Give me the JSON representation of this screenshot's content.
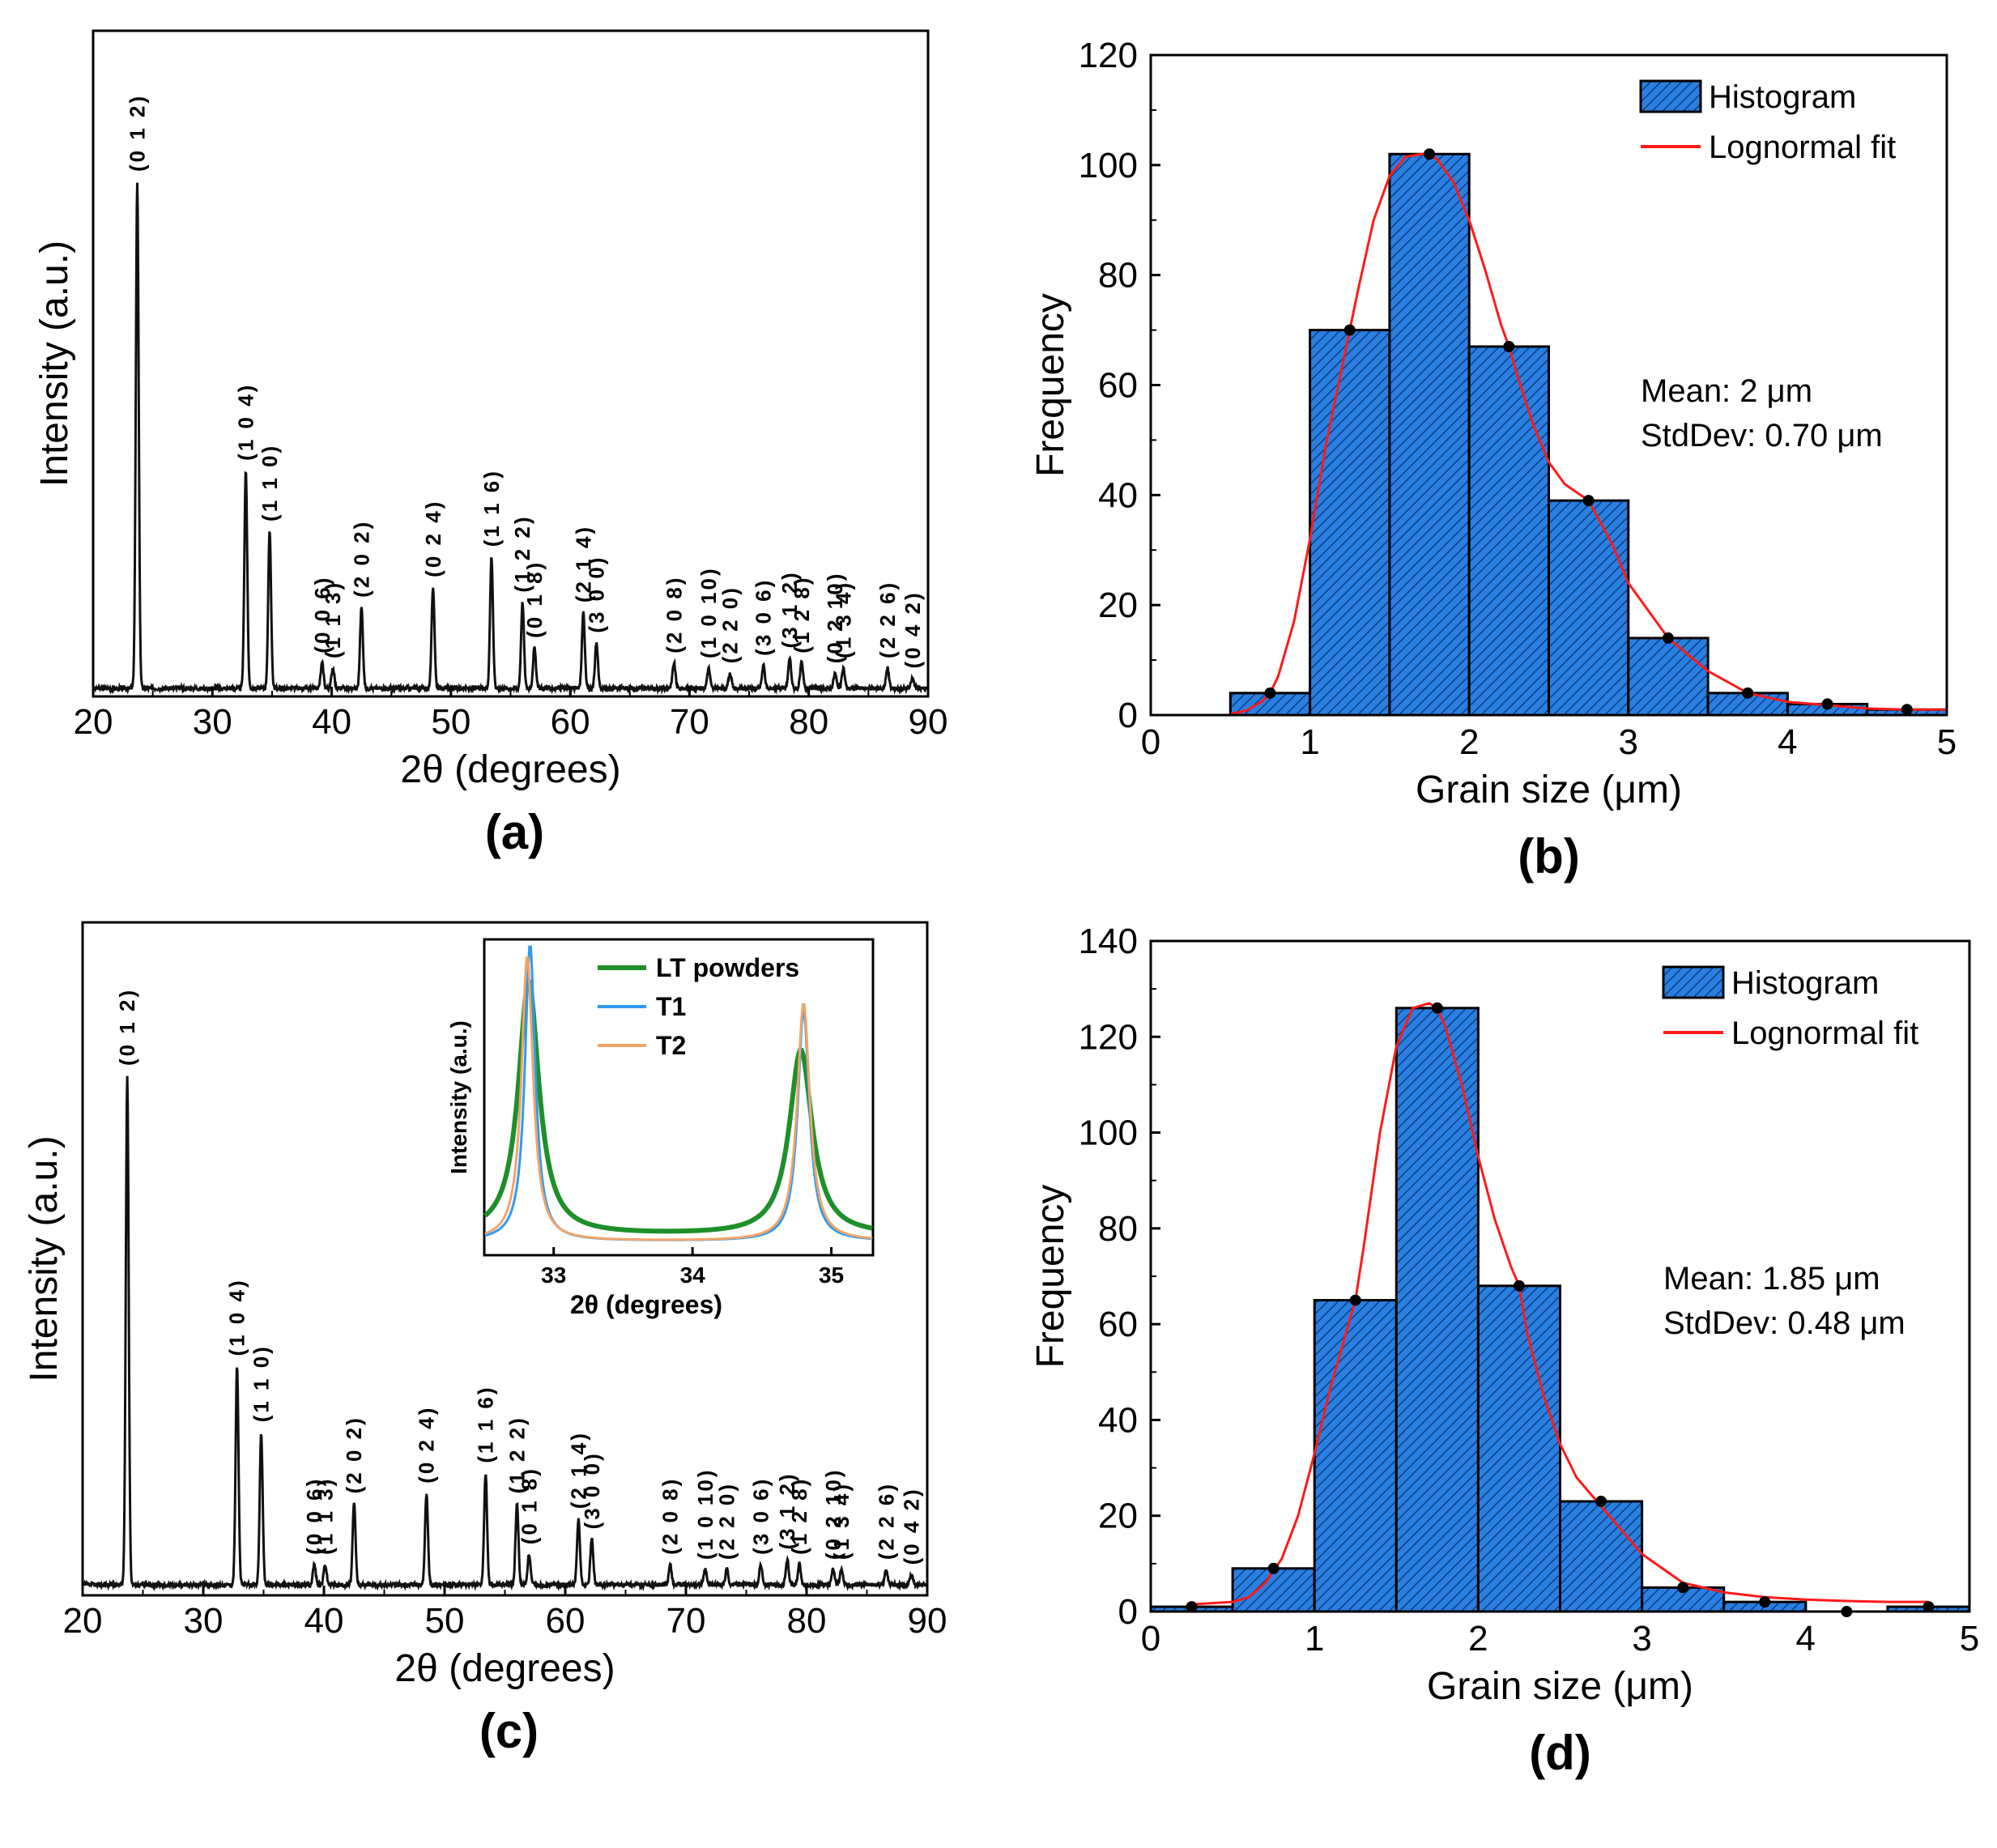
{
  "colors": {
    "axis": "#000000",
    "xrd_line": "#111111",
    "bar_fill": "#2a7fe0",
    "bar_edge": "#000000",
    "fit_line": "#ff1a1a",
    "marker": "#000000",
    "inset_lt": "#1f8f2a",
    "inset_t1": "#2f9bf0",
    "inset_t2": "#f0a46a"
  },
  "chart_data": [
    {
      "id": "a",
      "type": "line",
      "panel_label": "(a)",
      "xlabel": "2θ (degrees)",
      "ylabel": "Intensity (a.u.)",
      "xlim": [
        20,
        90
      ],
      "ylim": [
        0,
        100
      ],
      "xticks": [
        "20",
        "30",
        "40",
        "50",
        "60",
        "70",
        "80",
        "90"
      ],
      "baseline": 0,
      "peaks": [
        {
          "x": 23.7,
          "y": 100,
          "label": "(0 1 2)"
        },
        {
          "x": 32.8,
          "y": 43,
          "label": "(1 0 4)"
        },
        {
          "x": 34.8,
          "y": 31,
          "label": "(1 1 0)"
        },
        {
          "x": 39.2,
          "y": 5,
          "label": "(0 0 6)"
        },
        {
          "x": 40.1,
          "y": 4,
          "label": "(1 1 3)"
        },
        {
          "x": 42.5,
          "y": 16,
          "label": "(2 0 2)"
        },
        {
          "x": 48.5,
          "y": 20,
          "label": "(0 2 4)"
        },
        {
          "x": 53.4,
          "y": 26,
          "label": "(1 1 6)"
        },
        {
          "x": 56.0,
          "y": 17,
          "label": "(1 2 2)"
        },
        {
          "x": 57.0,
          "y": 8,
          "label": "(0 1 8)"
        },
        {
          "x": 61.1,
          "y": 15,
          "label": "(2 1 4)"
        },
        {
          "x": 62.2,
          "y": 9,
          "label": "(3 0 0)"
        },
        {
          "x": 68.7,
          "y": 5,
          "label": "(2 0 8)"
        },
        {
          "x": 71.6,
          "y": 4,
          "label": "(1 0 10)"
        },
        {
          "x": 73.4,
          "y": 3,
          "label": "(2 2 0)"
        },
        {
          "x": 76.2,
          "y": 4.5,
          "label": "(3 0 6)"
        },
        {
          "x": 78.4,
          "y": 6,
          "label": "(3 1 2)"
        },
        {
          "x": 79.4,
          "y": 5,
          "label": "(1 2 8)"
        },
        {
          "x": 82.2,
          "y": 3,
          "label": "(0 2 10)"
        },
        {
          "x": 82.9,
          "y": 4,
          "label": "(1 3 4)"
        },
        {
          "x": 86.6,
          "y": 4,
          "label": "(2 2 6)"
        },
        {
          "x": 88.7,
          "y": 2,
          "label": "(0 4 2)"
        }
      ]
    },
    {
      "id": "b",
      "type": "bar",
      "panel_label": "(b)",
      "xlabel": "Grain size (μm)",
      "ylabel": "Frequency",
      "xlim": [
        0,
        5
      ],
      "ylim": [
        0,
        120
      ],
      "xticks": [
        "0",
        "1",
        "2",
        "3",
        "4",
        "5"
      ],
      "yticks": [
        "0",
        "20",
        "40",
        "60",
        "80",
        "100",
        "120"
      ],
      "bin_edges": [
        0.5,
        1.0,
        1.5,
        2.0,
        2.5,
        3.0,
        3.5,
        4.0,
        4.5,
        5.0
      ],
      "values": [
        4,
        70,
        102,
        67,
        39,
        14,
        4,
        2,
        1
      ],
      "fit_points": {
        "x": [
          0.75,
          1.25,
          1.75,
          2.25,
          2.75,
          3.25,
          3.75,
          4.25,
          4.75
        ],
        "y": [
          4,
          70,
          102,
          67,
          39,
          14,
          4,
          2,
          1
        ]
      },
      "fit_curve": {
        "x": [
          0.5,
          0.6,
          0.7,
          0.75,
          0.8,
          0.9,
          1.0,
          1.1,
          1.2,
          1.25,
          1.3,
          1.4,
          1.5,
          1.6,
          1.7,
          1.75,
          1.8,
          1.9,
          2.0,
          2.1,
          2.2,
          2.25,
          2.3,
          2.4,
          2.5,
          2.6,
          2.75,
          2.9,
          3.0,
          3.25,
          3.5,
          3.75,
          4.0,
          4.25,
          4.5,
          4.75,
          5.0
        ],
        "y": [
          0.2,
          0.8,
          2.5,
          4,
          7,
          17,
          32,
          49,
          63,
          70,
          77,
          90,
          98,
          101.5,
          102,
          102,
          101,
          97,
          90,
          81,
          71,
          67,
          62,
          53,
          46,
          42,
          39,
          31,
          24,
          14,
          8,
          4,
          2.4,
          1.8,
          1.2,
          1,
          1
        ]
      },
      "legend": {
        "placement": "top-right",
        "items": [
          "Histogram",
          "Lognormal fit"
        ]
      },
      "annotations": [
        "Mean: 2 μm",
        "StdDev: 0.70 μm"
      ]
    },
    {
      "id": "c",
      "type": "line",
      "panel_label": "(c)",
      "xlabel": "2θ (degrees)",
      "ylabel": "Intensity (a.u.)",
      "xlim": [
        20,
        90
      ],
      "ylim": [
        0,
        100
      ],
      "xticks": [
        "20",
        "30",
        "40",
        "50",
        "60",
        "70",
        "80",
        "90"
      ],
      "baseline": 0,
      "peaks": [
        {
          "x": 23.7,
          "y": 100,
          "label": "(0 1 2)"
        },
        {
          "x": 32.8,
          "y": 43,
          "label": "(1 0 4)"
        },
        {
          "x": 34.8,
          "y": 30,
          "label": "(1 1 0)"
        },
        {
          "x": 39.2,
          "y": 4,
          "label": "(0 0 6)"
        },
        {
          "x": 40.1,
          "y": 4,
          "label": "(1 1 3)"
        },
        {
          "x": 42.5,
          "y": 16,
          "label": "(2 0 2)"
        },
        {
          "x": 48.5,
          "y": 18,
          "label": "(0 2 4)"
        },
        {
          "x": 53.4,
          "y": 22,
          "label": "(1 1 6)"
        },
        {
          "x": 56.0,
          "y": 16,
          "label": "(1 2 2)"
        },
        {
          "x": 57.0,
          "y": 6,
          "label": "(0 1 8)"
        },
        {
          "x": 61.1,
          "y": 13,
          "label": "(2 1 4)"
        },
        {
          "x": 62.2,
          "y": 9,
          "label": "(3 0 0)"
        },
        {
          "x": 68.7,
          "y": 4,
          "label": "(2 0 8)"
        },
        {
          "x": 71.6,
          "y": 3,
          "label": "(1 0 10)"
        },
        {
          "x": 73.4,
          "y": 3,
          "label": "(2 2 0)"
        },
        {
          "x": 76.2,
          "y": 4,
          "label": "(3 0 6)"
        },
        {
          "x": 78.4,
          "y": 5,
          "label": "(3 1 2)"
        },
        {
          "x": 79.4,
          "y": 4,
          "label": "(1 2 8)"
        },
        {
          "x": 82.2,
          "y": 3,
          "label": "(0 2 10)"
        },
        {
          "x": 82.9,
          "y": 3,
          "label": "(1 3 4)"
        },
        {
          "x": 86.6,
          "y": 3,
          "label": "(2 2 6)"
        },
        {
          "x": 88.7,
          "y": 2,
          "label": "(0 4 2)"
        }
      ],
      "inset": {
        "xlabel": "2θ (degrees)",
        "ylabel": "Intensity (a.u.)",
        "xlim": [
          32.5,
          35.3
        ],
        "ylim": [
          0,
          100
        ],
        "xticks": [
          "33",
          "34",
          "35"
        ],
        "legend_placement": "top-right",
        "series": [
          {
            "name": "LT powders",
            "color_key": "inset_lt",
            "peaks": [
              {
                "x": 32.82,
                "h": 85,
                "w": 0.09
              },
              {
                "x": 34.78,
                "h": 62,
                "w": 0.1
              }
            ],
            "base": 4
          },
          {
            "name": "T1",
            "color_key": "inset_t1",
            "peaks": [
              {
                "x": 32.83,
                "h": 100,
                "w": 0.045
              },
              {
                "x": 34.8,
                "h": 78,
                "w": 0.05
              }
            ],
            "base": 2
          },
          {
            "name": "T2",
            "color_key": "inset_t2",
            "peaks": [
              {
                "x": 32.81,
                "h": 96,
                "w": 0.05
              },
              {
                "x": 34.8,
                "h": 80,
                "w": 0.055
              }
            ],
            "base": 2
          }
        ]
      }
    },
    {
      "id": "d",
      "type": "bar",
      "panel_label": "(d)",
      "xlabel": "Grain size (μm)",
      "ylabel": "Frequency",
      "xlim": [
        0,
        5
      ],
      "ylim": [
        0,
        140
      ],
      "xticks": [
        "0",
        "1",
        "2",
        "3",
        "4",
        "5"
      ],
      "yticks": [
        "0",
        "20",
        "40",
        "60",
        "80",
        "100",
        "120",
        "140"
      ],
      "bin_edges": [
        0.0,
        0.5,
        1.0,
        1.5,
        2.0,
        2.5,
        3.0,
        3.5,
        4.0,
        4.5,
        5.0
      ],
      "values": [
        1,
        9,
        65,
        126,
        68,
        23,
        5,
        2,
        0,
        1
      ],
      "fit_points": {
        "x": [
          0.25,
          0.75,
          1.25,
          1.75,
          2.25,
          2.75,
          3.25,
          3.75,
          4.25,
          4.75
        ],
        "y": [
          1,
          9,
          65,
          126,
          68,
          23,
          5,
          2,
          0,
          1
        ]
      },
      "fit_curve": {
        "x": [
          0.25,
          0.5,
          0.6,
          0.7,
          0.8,
          0.9,
          1.0,
          1.1,
          1.2,
          1.25,
          1.3,
          1.4,
          1.5,
          1.6,
          1.7,
          1.75,
          1.8,
          1.9,
          2.0,
          2.1,
          2.2,
          2.25,
          2.3,
          2.4,
          2.5,
          2.6,
          2.75,
          3.0,
          3.25,
          3.5,
          3.75,
          4.0,
          4.25,
          4.5,
          4.75
        ],
        "y": [
          1.5,
          2,
          3,
          6,
          11,
          20,
          33,
          47,
          59,
          65,
          76,
          100,
          118,
          126,
          127,
          126,
          122,
          110,
          95,
          82,
          72,
          68,
          58,
          45,
          35,
          28,
          22,
          12,
          6,
          4,
          3,
          2.5,
          2.2,
          2,
          2
        ]
      },
      "legend": {
        "placement": "top-right",
        "items": [
          "Histogram",
          "Lognormal fit"
        ]
      },
      "annotations": [
        "Mean: 1.85 μm",
        "StdDev: 0.48 μm"
      ]
    }
  ]
}
